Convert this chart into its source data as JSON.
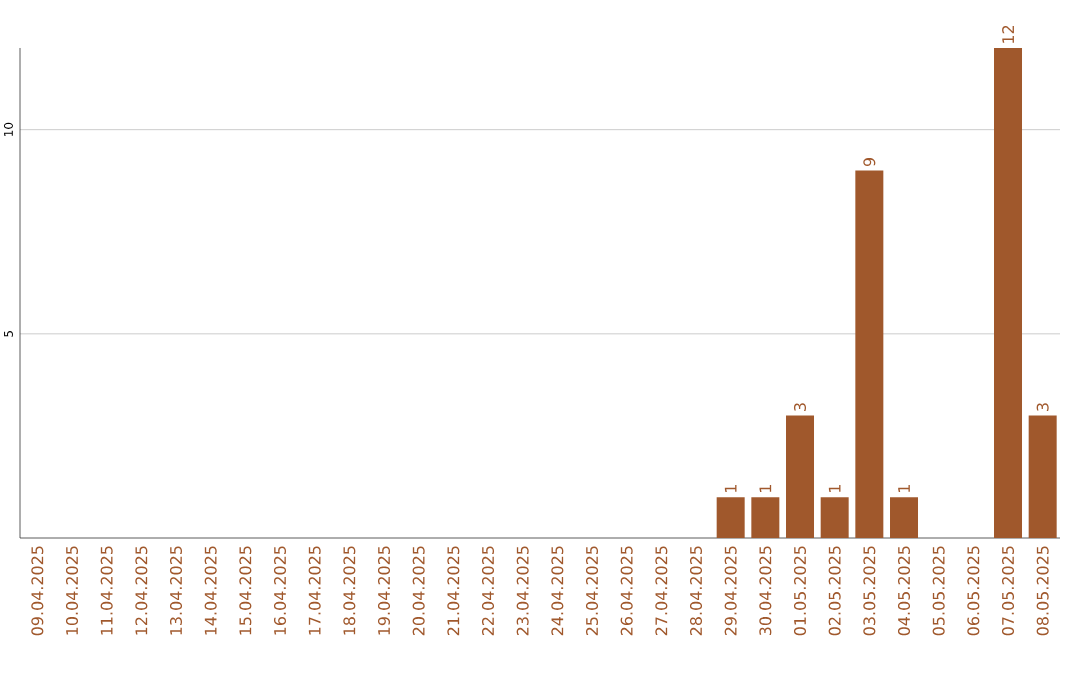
{
  "chart_data": {
    "type": "bar",
    "categories": [
      "09.04.2025",
      "10.04.2025",
      "11.04.2025",
      "12.04.2025",
      "13.04.2025",
      "14.04.2025",
      "15.04.2025",
      "16.04.2025",
      "17.04.2025",
      "18.04.2025",
      "19.04.2025",
      "20.04.2025",
      "21.04.2025",
      "22.04.2025",
      "23.04.2025",
      "24.04.2025",
      "25.04.2025",
      "26.04.2025",
      "27.04.2025",
      "28.04.2025",
      "29.04.2025",
      "30.04.2025",
      "01.05.2025",
      "02.05.2025",
      "03.05.2025",
      "04.05.2025",
      "05.05.2025",
      "06.05.2025",
      "07.05.2025",
      "08.05.2025"
    ],
    "values": [
      0,
      0,
      0,
      0,
      0,
      0,
      0,
      0,
      0,
      0,
      0,
      0,
      0,
      0,
      0,
      0,
      0,
      0,
      0,
      0,
      1,
      1,
      3,
      1,
      9,
      1,
      0,
      0,
      12,
      3
    ],
    "value_labels": [
      null,
      null,
      null,
      null,
      null,
      null,
      null,
      null,
      null,
      null,
      null,
      null,
      null,
      null,
      null,
      null,
      null,
      null,
      null,
      null,
      "1",
      "1",
      "3",
      "1",
      "9",
      "1",
      null,
      null,
      "12",
      "3"
    ],
    "color": "#a0582c",
    "ylim": [
      0,
      12
    ],
    "yticks": [
      5,
      10
    ],
    "grid": "y"
  }
}
